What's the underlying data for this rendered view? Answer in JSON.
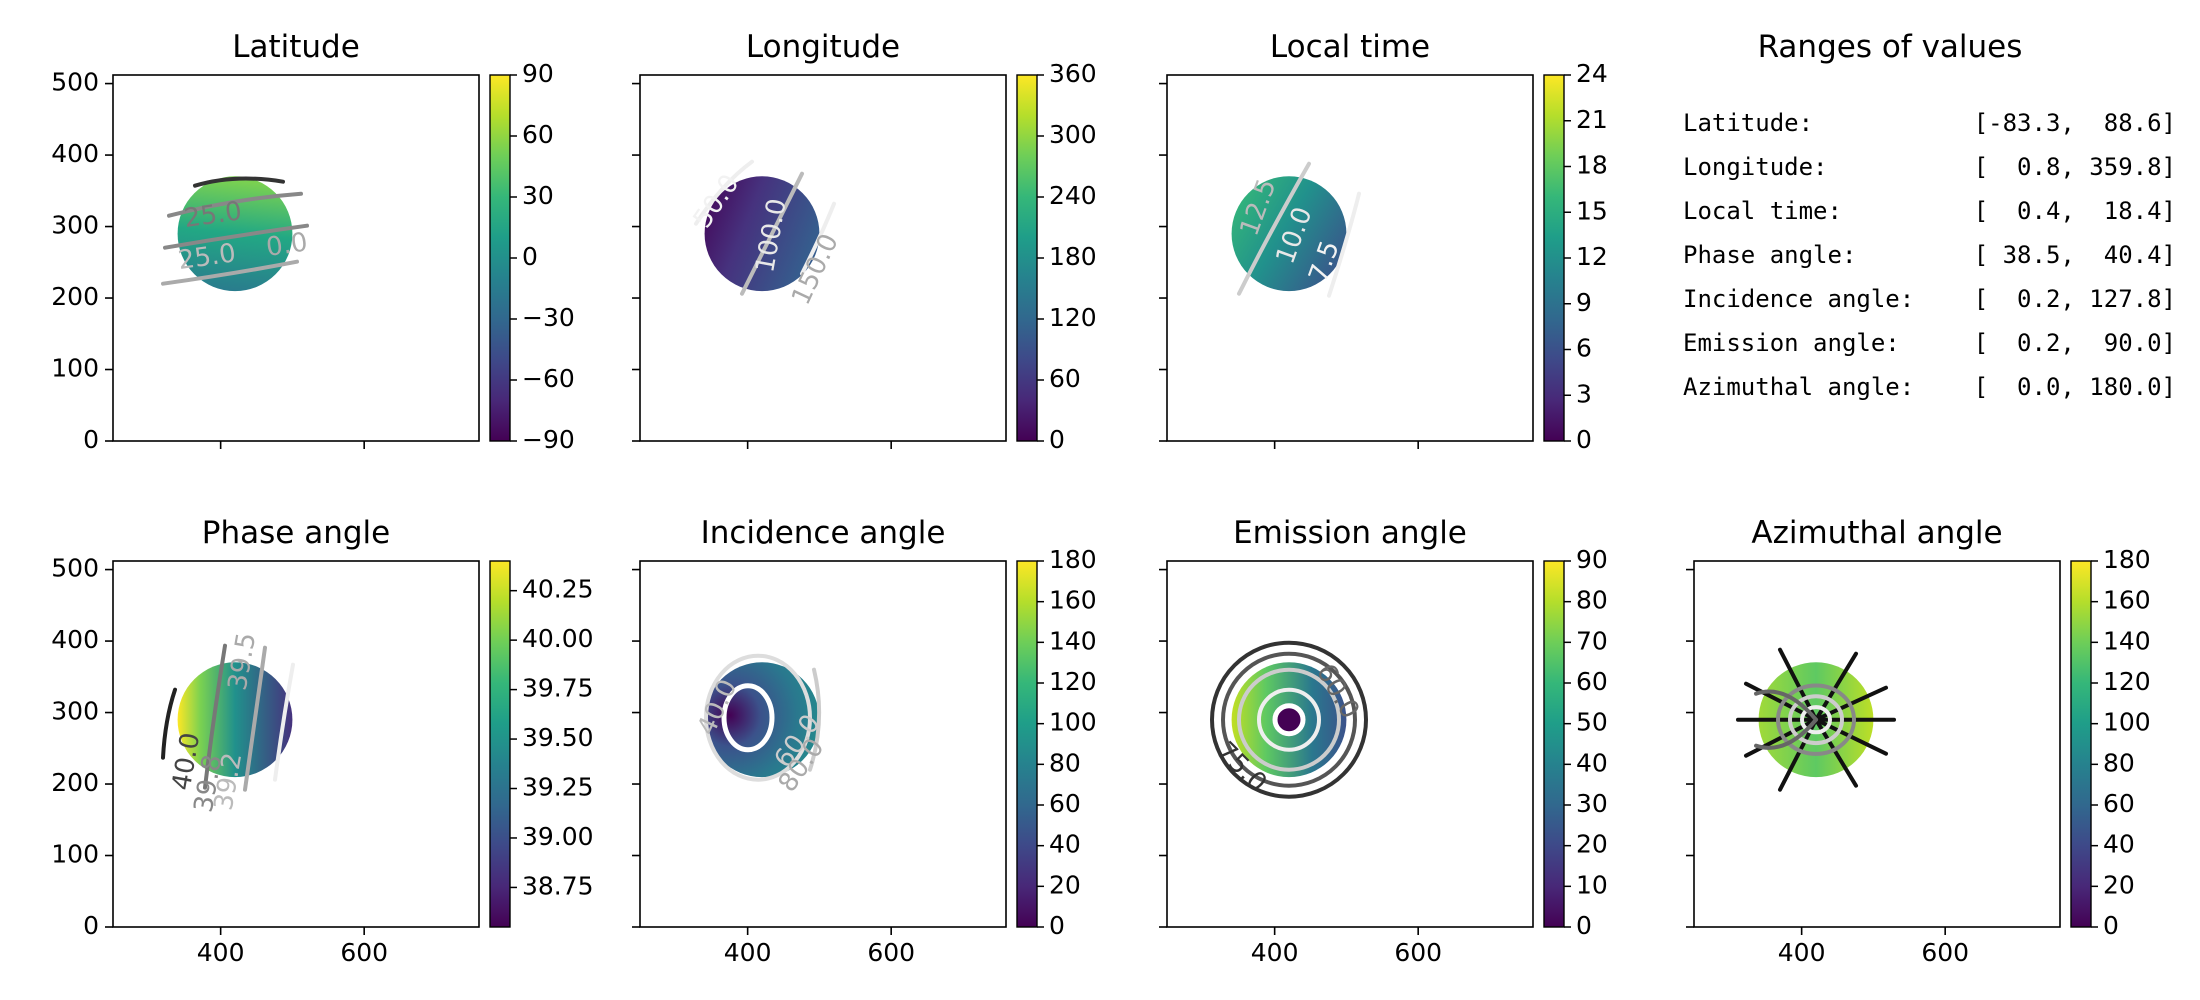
{
  "chart_data": [
    {
      "type": "heatmap",
      "title": "Latitude",
      "xlim": [
        250,
        760
      ],
      "ylim": [
        0,
        512
      ],
      "xticks": [
        400,
        600
      ],
      "yticks": [
        0,
        100,
        200,
        300,
        400,
        500
      ],
      "show_xticklabels": false,
      "show_yticklabels": true,
      "colorbar": {
        "min": -90,
        "max": 90,
        "ticks": [
          "90",
          "60",
          "30",
          "0",
          "−30",
          "−60",
          "−90"
        ]
      },
      "disk": {
        "center": [
          420,
          290
        ],
        "radius": 80,
        "value_range": [
          -83.3,
          88.6
        ]
      },
      "contour_labels": [
        "25.0",
        "25.0",
        "0.0"
      ]
    },
    {
      "type": "heatmap",
      "title": "Longitude",
      "xlim": [
        250,
        760
      ],
      "ylim": [
        0,
        512
      ],
      "xticks": [
        400,
        600
      ],
      "yticks": [
        0,
        100,
        200,
        300,
        400,
        500
      ],
      "show_xticklabels": false,
      "show_yticklabels": false,
      "colorbar": {
        "min": 0,
        "max": 360,
        "ticks": [
          "360",
          "300",
          "240",
          "180",
          "120",
          "60",
          "0"
        ]
      },
      "disk": {
        "center": [
          420,
          290
        ],
        "radius": 80,
        "value_range": [
          0.8,
          359.8
        ]
      },
      "contour_labels": [
        "50.0",
        "100.0",
        "150.0"
      ]
    },
    {
      "type": "heatmap",
      "title": "Local time",
      "xlim": [
        250,
        760
      ],
      "ylim": [
        0,
        512
      ],
      "xticks": [
        400,
        600
      ],
      "yticks": [
        0,
        100,
        200,
        300,
        400,
        500
      ],
      "show_xticklabels": false,
      "show_yticklabels": false,
      "colorbar": {
        "min": 0,
        "max": 24,
        "ticks": [
          "24",
          "21",
          "18",
          "15",
          "12",
          "9",
          "6",
          "3",
          "0"
        ]
      },
      "disk": {
        "center": [
          420,
          290
        ],
        "radius": 80,
        "value_range": [
          0.4,
          18.4
        ]
      },
      "contour_labels": [
        "12.5",
        "10.0",
        "7.5"
      ]
    },
    {
      "type": "table",
      "title": "Ranges of values",
      "rows": [
        {
          "label": "Latitude:",
          "range": "[-83.3,  88.6]"
        },
        {
          "label": "Longitude:",
          "range": "[  0.8, 359.8]"
        },
        {
          "label": "Local time:",
          "range": "[  0.4,  18.4]"
        },
        {
          "label": "Phase angle:",
          "range": "[ 38.5,  40.4]"
        },
        {
          "label": "Incidence angle:",
          "range": "[  0.2, 127.8]"
        },
        {
          "label": "Emission angle:",
          "range": "[  0.2,  90.0]"
        },
        {
          "label": "Azimuthal angle:",
          "range": "[  0.0, 180.0]"
        }
      ]
    },
    {
      "type": "heatmap",
      "title": "Phase angle",
      "xlim": [
        250,
        760
      ],
      "ylim": [
        0,
        512
      ],
      "xticks": [
        400,
        600
      ],
      "yticks": [
        0,
        100,
        200,
        300,
        400,
        500
      ],
      "show_xticklabels": true,
      "show_yticklabels": true,
      "colorbar": {
        "min": 38.55,
        "max": 40.4,
        "ticks": [
          "40.25",
          "40.00",
          "39.75",
          "39.50",
          "39.25",
          "39.00",
          "38.75"
        ],
        "tick_values": [
          40.25,
          40.0,
          39.75,
          39.5,
          39.25,
          39.0,
          38.75
        ]
      },
      "disk": {
        "center": [
          420,
          290
        ],
        "radius": 80,
        "value_range": [
          38.5,
          40.4
        ]
      },
      "contour_labels": [
        "39.5",
        "40.0",
        "39.8",
        "39.2"
      ]
    },
    {
      "type": "heatmap",
      "title": "Incidence angle",
      "xlim": [
        250,
        760
      ],
      "ylim": [
        0,
        512
      ],
      "xticks": [
        400,
        600
      ],
      "yticks": [
        0,
        100,
        200,
        300,
        400,
        500
      ],
      "show_xticklabels": true,
      "show_yticklabels": false,
      "colorbar": {
        "min": 0,
        "max": 180,
        "ticks": [
          "180",
          "160",
          "140",
          "120",
          "100",
          "80",
          "60",
          "40",
          "20",
          "0"
        ]
      },
      "disk": {
        "center": [
          420,
          290
        ],
        "radius": 80,
        "value_range": [
          0.2,
          127.8
        ]
      },
      "contour_labels": [
        "40.0",
        "60.0",
        "80.0"
      ]
    },
    {
      "type": "heatmap",
      "title": "Emission angle",
      "xlim": [
        250,
        760
      ],
      "ylim": [
        0,
        512
      ],
      "xticks": [
        400,
        600
      ],
      "yticks": [
        0,
        100,
        200,
        300,
        400,
        500
      ],
      "show_xticklabels": true,
      "show_yticklabels": false,
      "colorbar": {
        "min": 0,
        "max": 90,
        "ticks": [
          "90",
          "80",
          "70",
          "60",
          "50",
          "40",
          "30",
          "20",
          "10",
          "0"
        ]
      },
      "disk": {
        "center": [
          420,
          290
        ],
        "radius": 80,
        "value_range": [
          0.2,
          90.0
        ]
      },
      "contour_labels": [
        "60.0",
        "75.0"
      ]
    },
    {
      "type": "heatmap",
      "title": "Azimuthal angle",
      "xlim": [
        250,
        760
      ],
      "ylim": [
        0,
        512
      ],
      "xticks": [
        400,
        600
      ],
      "yticks": [
        0,
        100,
        200,
        300,
        400,
        500
      ],
      "show_xticklabels": true,
      "show_yticklabels": false,
      "colorbar": {
        "min": 0,
        "max": 180,
        "ticks": [
          "180",
          "160",
          "140",
          "120",
          "100",
          "80",
          "60",
          "40",
          "20",
          "0"
        ]
      },
      "disk": {
        "center": [
          420,
          290
        ],
        "radius": 80,
        "value_range": [
          0.0,
          180.0
        ]
      },
      "contour_labels": []
    }
  ],
  "colormap": [
    "#440154",
    "#482878",
    "#3e4989",
    "#31688e",
    "#26828e",
    "#1f9e89",
    "#35b779",
    "#6ece58",
    "#b5de2b",
    "#fde725"
  ]
}
